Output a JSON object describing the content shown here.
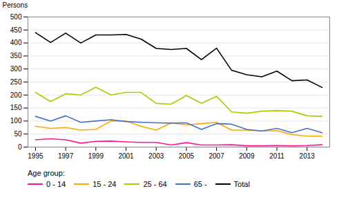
{
  "chart_data": {
    "type": "line",
    "ylabel": "Persons",
    "legend_title": "Age group:",
    "x": [
      1995,
      1996,
      1997,
      1998,
      1999,
      2000,
      2001,
      2002,
      2003,
      2004,
      2005,
      2006,
      2007,
      2008,
      2009,
      2010,
      2011,
      2012,
      2013,
      2014
    ],
    "series": [
      {
        "name": "0 - 14",
        "color": "#ff1493",
        "values": [
          28,
          32,
          28,
          15,
          22,
          23,
          20,
          18,
          18,
          8,
          17,
          8,
          8,
          9,
          5,
          5,
          6,
          5,
          6,
          9
        ]
      },
      {
        "name": "15 - 24",
        "color": "#ffa500",
        "values": [
          80,
          72,
          75,
          65,
          68,
          100,
          100,
          80,
          65,
          93,
          85,
          90,
          95,
          65,
          65,
          62,
          63,
          48,
          42,
          42
        ]
      },
      {
        "name": "25 - 64",
        "color": "#aacc00",
        "values": [
          210,
          175,
          205,
          200,
          230,
          200,
          210,
          210,
          168,
          165,
          198,
          168,
          195,
          135,
          130,
          138,
          140,
          138,
          120,
          118
        ]
      },
      {
        "name": "65 -",
        "color": "#4472c4",
        "values": [
          118,
          100,
          120,
          95,
          100,
          105,
          98,
          95,
          93,
          92,
          93,
          68,
          90,
          88,
          68,
          62,
          72,
          55,
          72,
          55
        ]
      },
      {
        "name": "Total",
        "color": "#000000",
        "values": [
          440,
          402,
          438,
          400,
          431,
          431,
          433,
          415,
          379,
          375,
          379,
          336,
          380,
          295,
          278,
          270,
          292,
          255,
          258,
          229
        ]
      }
    ],
    "xlim": [
      1994.5,
      2014.5
    ],
    "xticks": [
      1995,
      1997,
      1999,
      2001,
      2003,
      2005,
      2007,
      2009,
      2011,
      2013
    ],
    "ylim": [
      0,
      500
    ],
    "yticks": [
      0,
      50,
      100,
      150,
      200,
      250,
      300,
      350,
      400,
      450,
      500
    ],
    "grid": true,
    "legend": "bottom"
  }
}
